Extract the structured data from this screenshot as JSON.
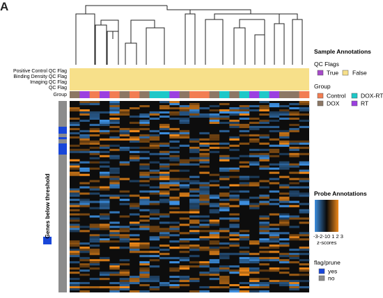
{
  "panel_label": "A",
  "row_annotation_labels": [
    "Positive Control QC Flag",
    "Binding Density QC Flag",
    "Imaging QC Flag",
    "QC Flag",
    "Group"
  ],
  "side_label": "Genes below threshold",
  "legend": {
    "sample_title": "Sample Annotations",
    "qc_title": "QC Flags",
    "qc_true": "True",
    "qc_false": "False",
    "group_title": "Group",
    "groups": [
      "Control",
      "DOX-RT",
      "DOX",
      "RT"
    ],
    "probe_title": "Probe Annotations",
    "scale_ticks": "-3-2-10 1 2 3",
    "scale_label": "z-scores",
    "flag_title": "flag/prune",
    "flag_yes": "yes",
    "flag_no": "no"
  },
  "colors": {
    "qc_true": "#a64ac9",
    "qc_false": "#f7e08a",
    "control": "#f27d52",
    "dox_rt": "#1ec8c8",
    "dox": "#8c7764",
    "rt": "#9b3fe0",
    "flag_yes": "#1846d9",
    "flag_no": "#8c8c8c",
    "low": "#3d8fe0",
    "mid": "#0a0a0a",
    "high": "#f08a1a"
  },
  "chart_data": {
    "type": "heatmap",
    "n_samples": 24,
    "sample_groups": [
      "DOX",
      "RT",
      "Control",
      "RT",
      "Control",
      "DOX",
      "Control",
      "DOX",
      "DOX-RT",
      "DOX-RT",
      "RT",
      "DOX",
      "Control",
      "Control",
      "DOX",
      "DOX-RT",
      "DOX",
      "DOX-RT",
      "RT",
      "DOX-RT",
      "RT",
      "DOX",
      "DOX",
      "Control"
    ],
    "qc_flags_all_false": true,
    "value_scale": [
      -3,
      3
    ]
  }
}
